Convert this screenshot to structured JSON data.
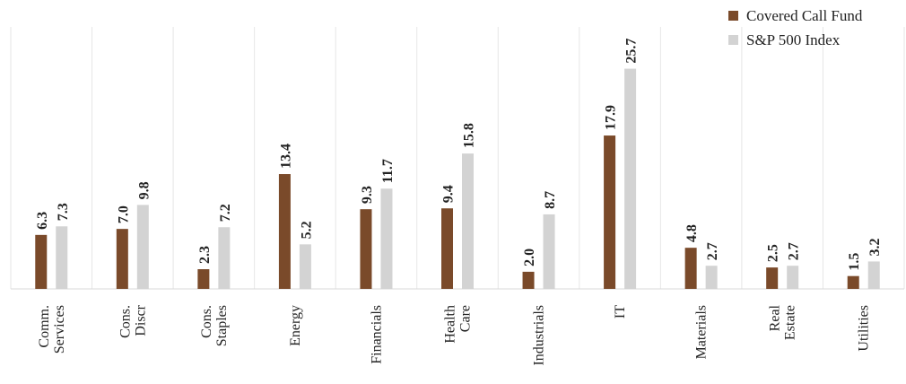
{
  "chart_data": {
    "type": "bar",
    "title": "",
    "xlabel": "",
    "ylabel": "",
    "ylim": [
      0,
      28
    ],
    "grid": false,
    "legend_position": "top-right",
    "categories": [
      [
        "Comm.",
        "Services"
      ],
      [
        "Cons.",
        "Discr"
      ],
      [
        "Cons.",
        "Staples"
      ],
      [
        "Energy"
      ],
      [
        "Financials"
      ],
      [
        "Health",
        "Care"
      ],
      [
        "Industrials"
      ],
      [
        "IT"
      ],
      [
        "Materials"
      ],
      [
        "Real",
        "Estate"
      ],
      [
        "Utilities"
      ]
    ],
    "series": [
      {
        "name": "Covered Call Fund",
        "color": "#7a4a2a",
        "values": [
          6.3,
          7.0,
          2.3,
          13.4,
          9.3,
          9.4,
          2.0,
          17.9,
          4.8,
          2.5,
          1.5
        ],
        "labels": [
          "6.3",
          "7.0",
          "2.3",
          "13.4",
          "9.3",
          "9.4",
          "2.0",
          "17.9",
          "4.8",
          "2.5",
          "1.5"
        ]
      },
      {
        "name": "S&P 500 Index",
        "color": "#d3d3d3",
        "values": [
          7.3,
          9.8,
          7.2,
          5.2,
          11.7,
          15.8,
          8.7,
          25.7,
          2.7,
          2.7,
          3.2
        ],
        "labels": [
          "7.3",
          "9.8",
          "7.2",
          "5.2",
          "11.7",
          "15.8",
          "8.7",
          "25.7",
          "2.7",
          "2.7",
          "3.2"
        ]
      }
    ]
  }
}
